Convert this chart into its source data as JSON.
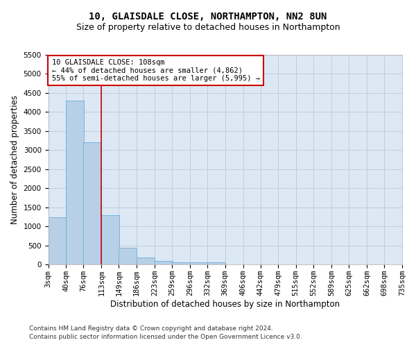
{
  "title_line1": "10, GLAISDALE CLOSE, NORTHAMPTON, NN2 8UN",
  "title_line2": "Size of property relative to detached houses in Northampton",
  "xlabel": "Distribution of detached houses by size in Northampton",
  "ylabel": "Number of detached properties",
  "bins": [
    "3sqm",
    "40sqm",
    "76sqm",
    "113sqm",
    "149sqm",
    "186sqm",
    "223sqm",
    "259sqm",
    "296sqm",
    "332sqm",
    "369sqm",
    "406sqm",
    "442sqm",
    "479sqm",
    "515sqm",
    "552sqm",
    "589sqm",
    "625sqm",
    "662sqm",
    "698sqm",
    "735sqm"
  ],
  "bin_edges": [
    3,
    40,
    76,
    113,
    149,
    186,
    223,
    259,
    296,
    332,
    369,
    406,
    442,
    479,
    515,
    552,
    589,
    625,
    662,
    698,
    735
  ],
  "bar_heights": [
    1250,
    4300,
    3200,
    1300,
    450,
    195,
    90,
    65,
    68,
    60,
    0,
    0,
    0,
    0,
    0,
    0,
    0,
    0,
    0,
    0
  ],
  "bar_color": "#b8cfe8",
  "bar_edge_color": "#6baed6",
  "vline_x": 113,
  "vline_color": "#cc0000",
  "ylim": [
    0,
    5500
  ],
  "yticks": [
    0,
    500,
    1000,
    1500,
    2000,
    2500,
    3000,
    3500,
    4000,
    4500,
    5000,
    5500
  ],
  "annotation_line1": "10 GLAISDALE CLOSE: 108sqm",
  "annotation_line2": "← 44% of detached houses are smaller (4,862)",
  "annotation_line3": "55% of semi-detached houses are larger (5,995) →",
  "annotation_box_color": "#ffffff",
  "annotation_edge_color": "#cc0000",
  "footer_line1": "Contains HM Land Registry data © Crown copyright and database right 2024.",
  "footer_line2": "Contains public sector information licensed under the Open Government Licence v3.0.",
  "background_color": "#ffffff",
  "plot_bg_color": "#dde8f5",
  "grid_color": "#c0ccdd",
  "title_fontsize": 10,
  "subtitle_fontsize": 9,
  "axis_label_fontsize": 8.5,
  "tick_fontsize": 7.5,
  "annotation_fontsize": 7.5,
  "footer_fontsize": 6.5
}
